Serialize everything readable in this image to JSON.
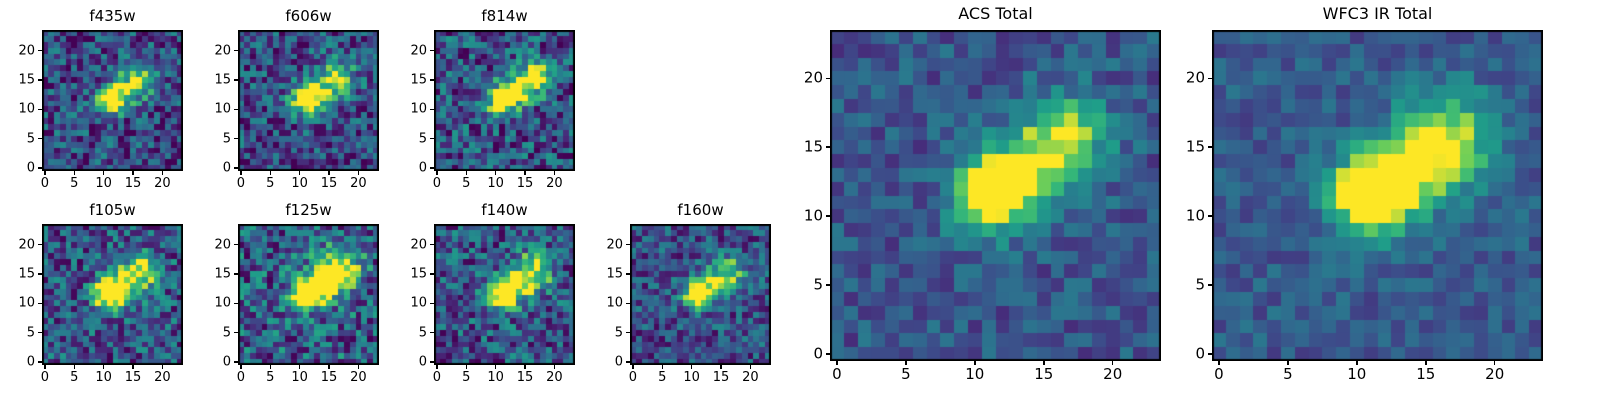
{
  "chart_data": {
    "type": "heatmap",
    "colormap": "viridis",
    "colormap_rgb_stops": [
      [
        68,
        1,
        84
      ],
      [
        72,
        40,
        120
      ],
      [
        62,
        73,
        137
      ],
      [
        49,
        104,
        142
      ],
      [
        38,
        130,
        142
      ],
      [
        31,
        158,
        137
      ],
      [
        53,
        183,
        121
      ],
      [
        110,
        206,
        88
      ],
      [
        253,
        231,
        37
      ]
    ],
    "grid_size": 24,
    "xlim": [
      -0.5,
      23.5
    ],
    "ylim": [
      -0.5,
      23.5
    ],
    "xticks": [
      0,
      5,
      10,
      15,
      20
    ],
    "yticks": [
      0,
      5,
      10,
      15,
      20
    ],
    "description": "Cutout stamps of a galaxy (bright core near x=11,y=11 with a fainter clump extending to upper right near x=17,y=15) in HST filters, viridis colormap, origin lower",
    "panels": [
      {
        "title": "f435w",
        "seed": 11,
        "background": 0.26,
        "noise": 0.3,
        "blobs": [
          [
            11,
            11.5,
            1.7,
            0.95
          ],
          [
            13.5,
            13.0,
            2.0,
            0.4
          ],
          [
            16.5,
            15.5,
            2.2,
            0.6
          ]
        ]
      },
      {
        "title": "f606w",
        "seed": 22,
        "background": 0.27,
        "noise": 0.3,
        "blobs": [
          [
            11,
            11.5,
            1.7,
            1.0
          ],
          [
            13.5,
            13.0,
            2.0,
            0.45
          ],
          [
            16.5,
            15.5,
            2.2,
            0.55
          ]
        ]
      },
      {
        "title": "f814w",
        "seed": 33,
        "background": 0.28,
        "noise": 0.32,
        "blobs": [
          [
            11,
            11.5,
            1.7,
            1.0
          ],
          [
            13.5,
            13.0,
            2.0,
            0.5
          ],
          [
            16.5,
            15.5,
            2.2,
            0.6
          ]
        ]
      },
      {
        "title": "f105w",
        "seed": 44,
        "background": 0.3,
        "noise": 0.3,
        "blobs": [
          [
            11,
            11.5,
            1.8,
            1.0
          ],
          [
            13.5,
            13.0,
            2.0,
            0.5
          ],
          [
            16.5,
            15.5,
            2.2,
            0.65
          ]
        ]
      },
      {
        "title": "f125w",
        "seed": 55,
        "background": 0.33,
        "noise": 0.34,
        "blobs": [
          [
            11,
            11.5,
            1.8,
            1.0
          ],
          [
            13.5,
            13.0,
            2.2,
            0.55
          ],
          [
            16.5,
            15.5,
            2.6,
            0.85
          ]
        ]
      },
      {
        "title": "f140w",
        "seed": 66,
        "background": 0.3,
        "noise": 0.3,
        "blobs": [
          [
            11,
            11.5,
            1.8,
            1.0
          ],
          [
            13.5,
            13.0,
            2.0,
            0.5
          ],
          [
            16.5,
            15.5,
            2.2,
            0.7
          ]
        ]
      },
      {
        "title": "f160w",
        "seed": 77,
        "background": 0.28,
        "noise": 0.26,
        "blobs": [
          [
            11,
            11.5,
            1.5,
            1.1
          ],
          [
            13.5,
            13.0,
            1.9,
            0.45
          ],
          [
            16.5,
            15.5,
            2.0,
            0.5
          ]
        ]
      },
      {
        "title": "ACS Total",
        "seed": 88,
        "background": 0.3,
        "noise": 0.16,
        "blobs": [
          [
            11,
            11.5,
            1.8,
            1.05
          ],
          [
            13.5,
            13.0,
            2.0,
            0.5
          ],
          [
            16.5,
            15.5,
            2.3,
            0.62
          ]
        ]
      },
      {
        "title": "WFC3 IR Total",
        "seed": 99,
        "background": 0.32,
        "noise": 0.13,
        "blobs": [
          [
            11,
            11.5,
            1.9,
            1.1
          ],
          [
            13.5,
            13.0,
            2.1,
            0.5
          ],
          [
            16.5,
            15.5,
            2.4,
            0.68
          ]
        ]
      }
    ]
  }
}
